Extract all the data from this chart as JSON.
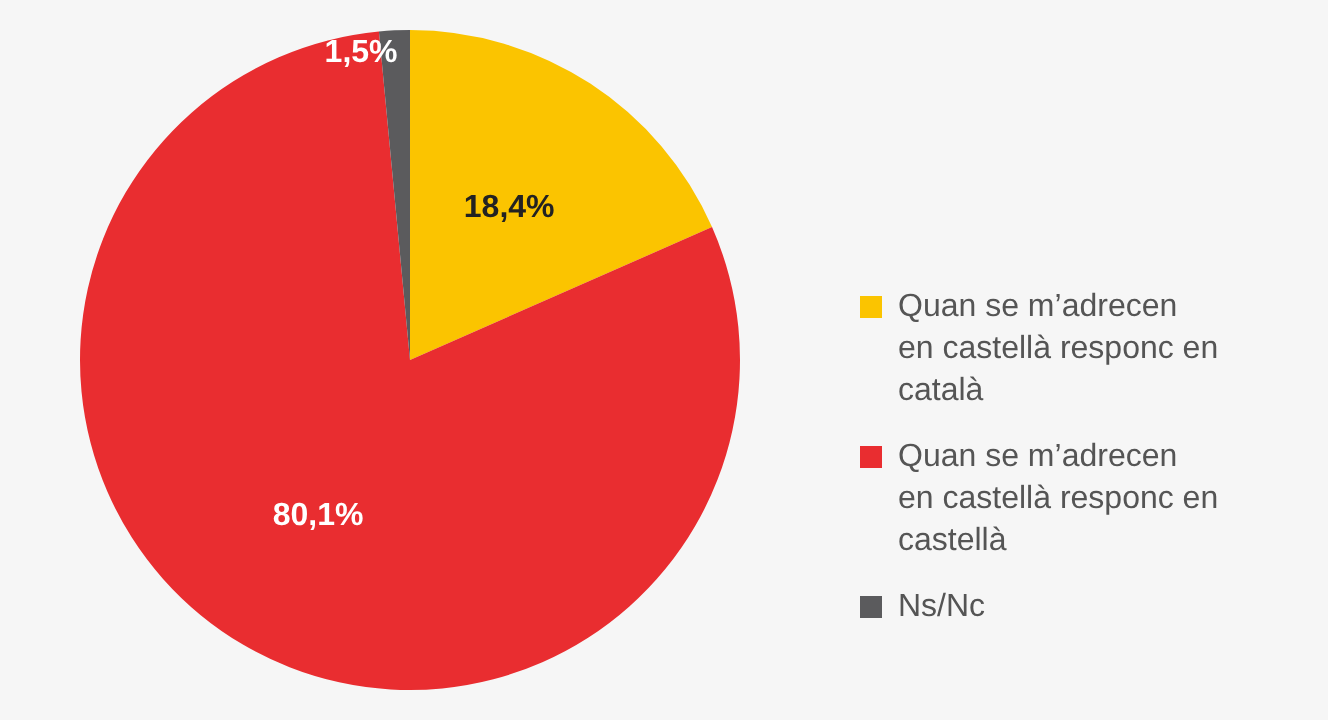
{
  "chart_data": {
    "type": "pie",
    "categories": [
      "Quan se m’adrecen en castellà responc en català",
      "Quan se m’adrecen en castellà responc en castellà",
      "Ns/Nc"
    ],
    "values": [
      18.4,
      80.1,
      1.5
    ],
    "colors": [
      "#fbc400",
      "#e92d30",
      "#5b5b5d"
    ],
    "value_labels": [
      "18,4%",
      "80,1%",
      "1,5%"
    ],
    "legend": "right"
  }
}
